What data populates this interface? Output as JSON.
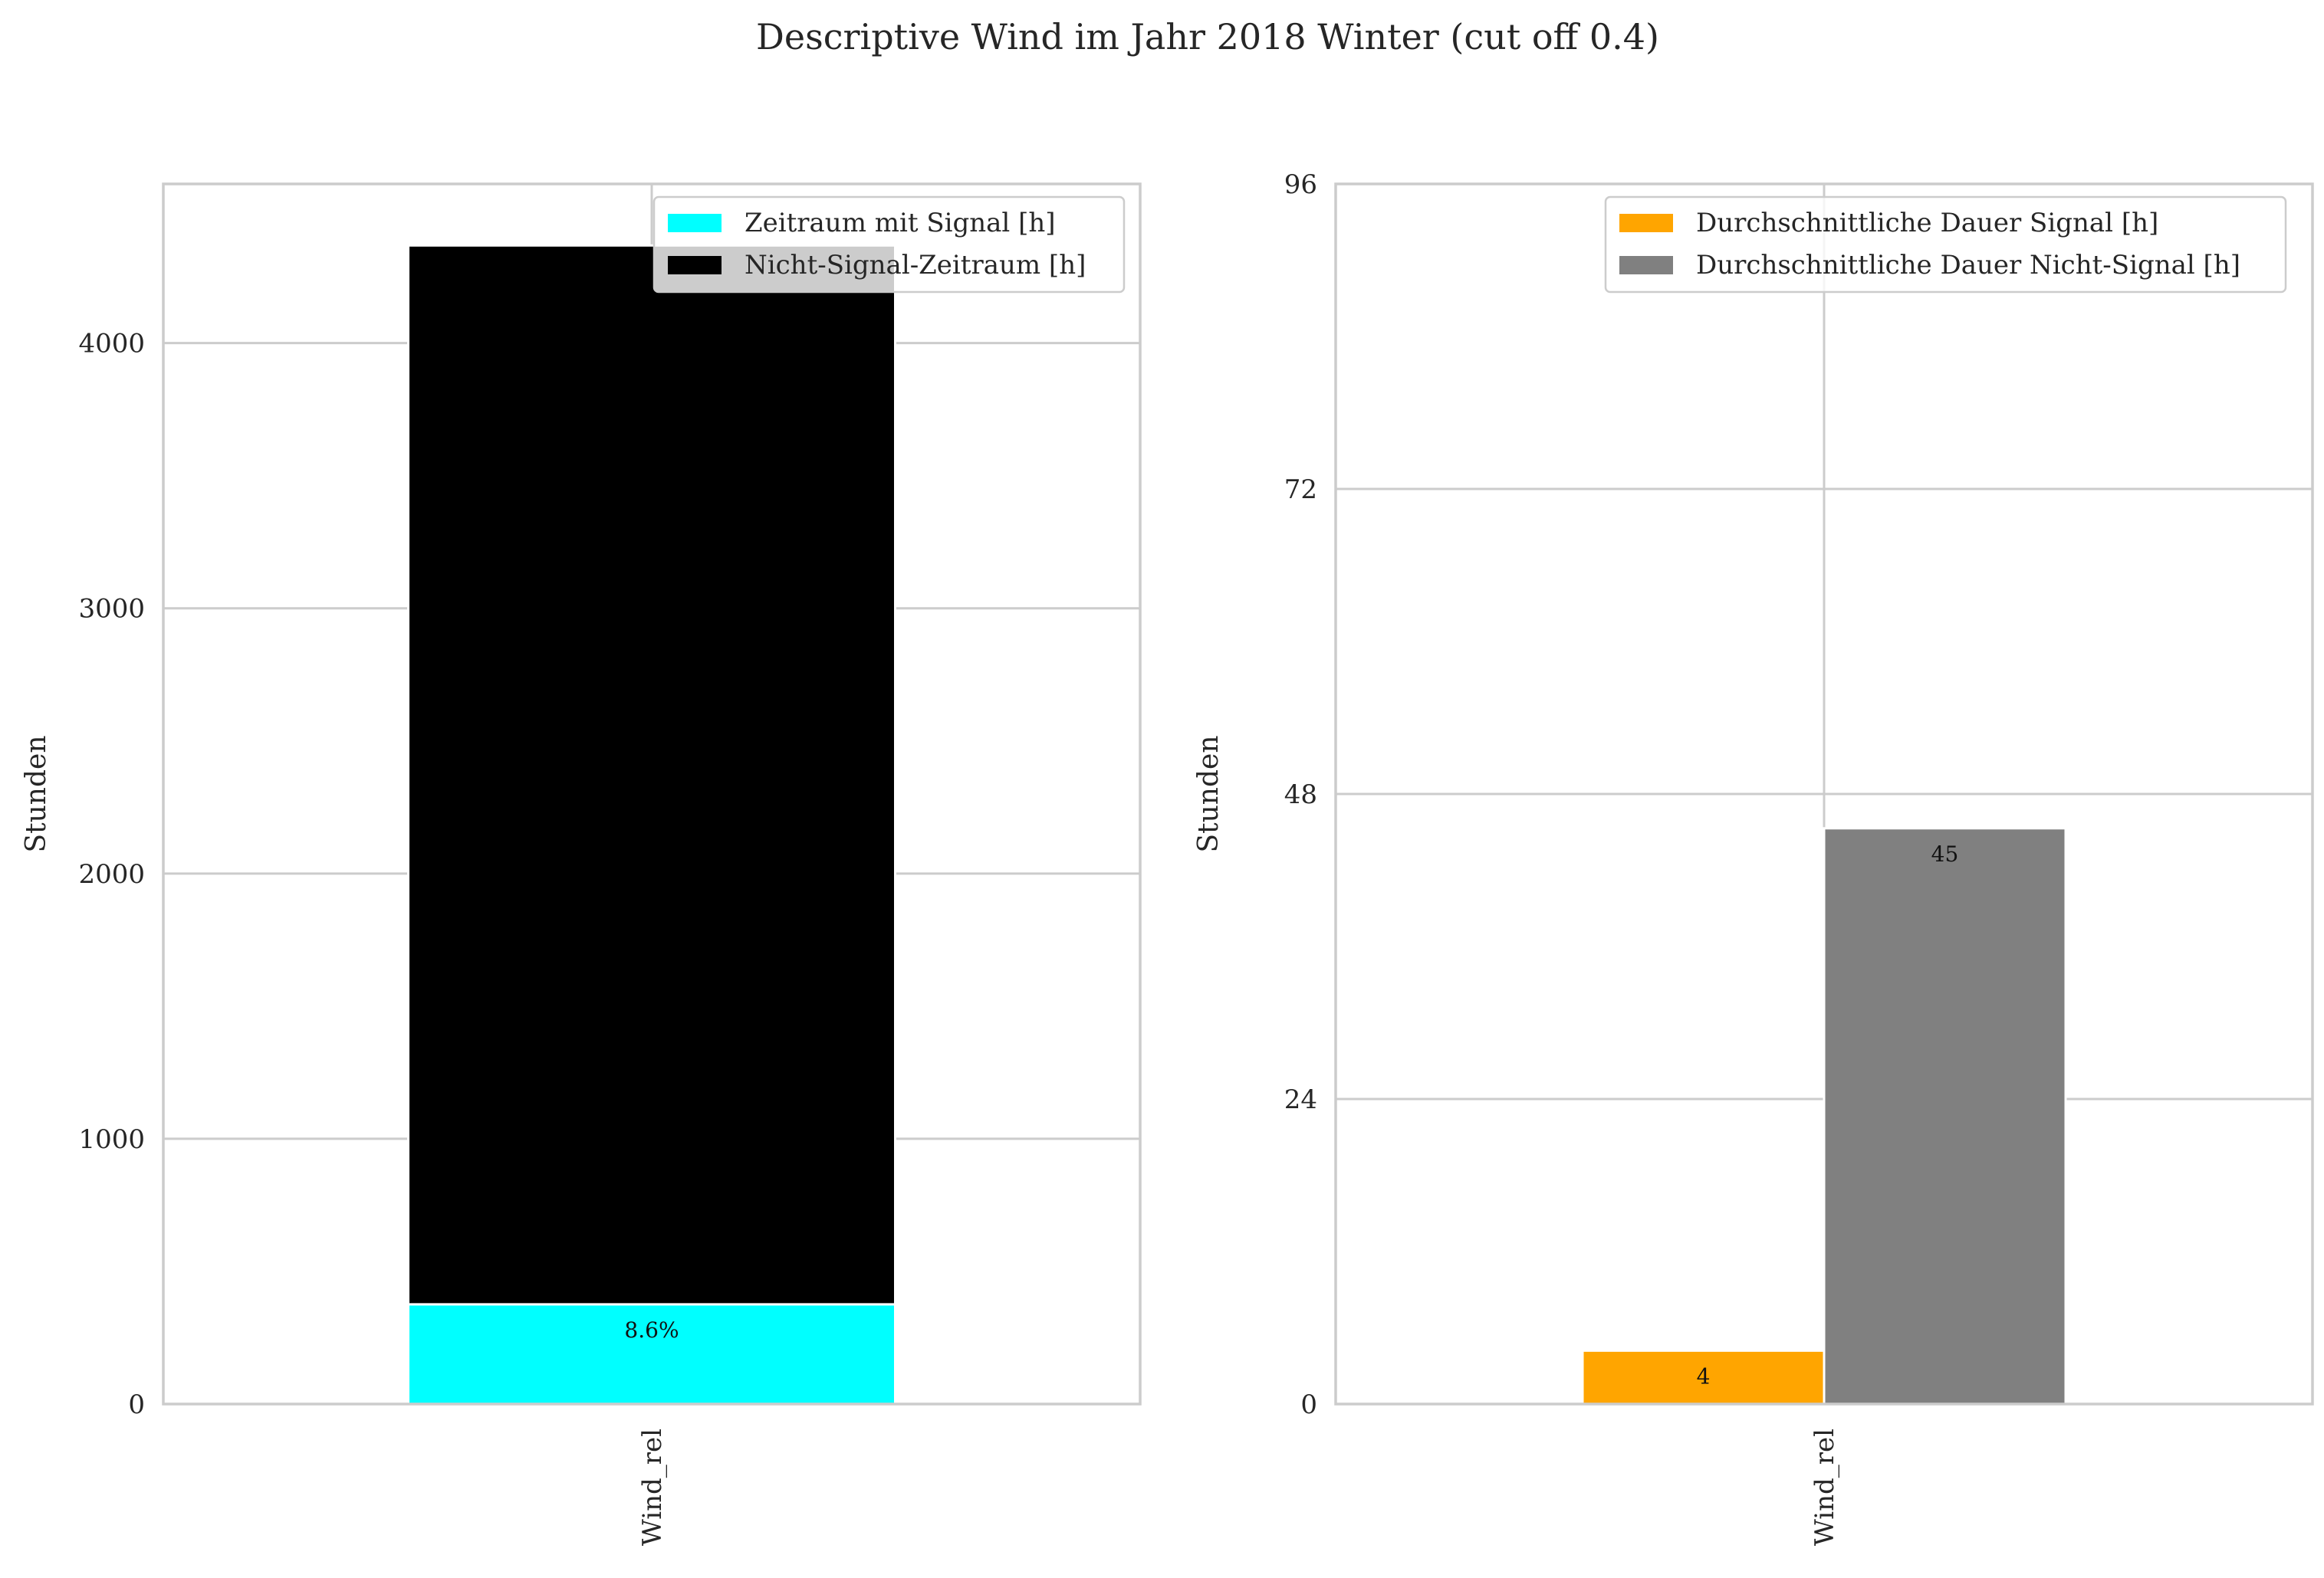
{
  "title": "Descriptive Wind im Jahr 2018 Winter (cut off 0.4)",
  "chart_data": [
    {
      "type": "bar",
      "stacked": true,
      "categories": [
        "Wind_rel"
      ],
      "ylabel": "Stunden",
      "ylim": [
        0,
        4600
      ],
      "yticks": [
        0,
        1000,
        2000,
        3000,
        4000
      ],
      "grid": true,
      "legend_position": "top-right",
      "series": [
        {
          "name": "Zeitraum mit Signal [h]",
          "values": [
            376
          ],
          "color": "#00ffff",
          "label": "8.6%"
        },
        {
          "name": "Nicht-Signal-Zeitraum [h]",
          "values": [
            3992
          ],
          "color": "#000000"
        }
      ]
    },
    {
      "type": "bar",
      "stacked": false,
      "categories": [
        "Wind_rel"
      ],
      "ylabel": "Stunden",
      "ylim": [
        0,
        96
      ],
      "yticks": [
        0,
        24,
        48,
        72,
        96
      ],
      "grid": true,
      "legend_position": "top-right",
      "series": [
        {
          "name": "Durchschnittliche Dauer Signal [h]",
          "values": [
            4.2
          ],
          "color": "#ffa500",
          "label": "4"
        },
        {
          "name": "Durchschnittliche Dauer Nicht-Signal [h]",
          "values": [
            45.3
          ],
          "color": "#808080",
          "label": "45"
        }
      ]
    }
  ]
}
